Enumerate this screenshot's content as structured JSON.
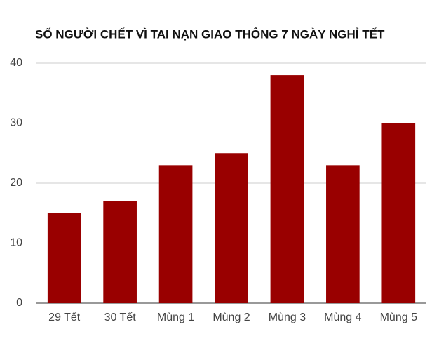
{
  "chart_data": {
    "type": "bar",
    "title": "SỐ NGƯỜI CHẾT VÌ TAI NẠN GIAO THÔNG 7 NGÀY NGHỈ TẾT",
    "categories": [
      "29 Tết",
      "30 Tết",
      "Mùng 1",
      "Mùng 2",
      "Mùng 3",
      "Mùng 4",
      "Mùng 5"
    ],
    "values": [
      15,
      17,
      23,
      25,
      38,
      23,
      30
    ],
    "color": "#990000",
    "ylim": [
      0,
      40
    ],
    "yticks": [
      0,
      10,
      20,
      30,
      40
    ],
    "grid": true
  }
}
